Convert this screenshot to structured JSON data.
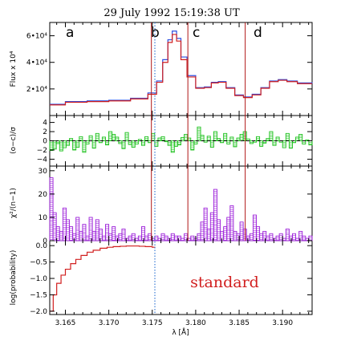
{
  "title": "29 July 1992      15:19:38 UT",
  "xlabel": "λ [Å]",
  "x_ticks": [
    "3.165",
    "3.170",
    "3.175",
    "3.180",
    "3.185",
    "3.190"
  ],
  "region_letters": [
    "a",
    "b",
    "c",
    "d"
  ],
  "annotation": "standard",
  "colors": {
    "observed": "#2c4de0",
    "model": "#d11f1f",
    "residual": "#19c019",
    "chi": "#9c1fd9",
    "probability": "#d11f1f",
    "boundary": "#b01616",
    "dotted": "#3a7bd5",
    "annotation": "#d11f1f"
  },
  "chart_data": [
    {
      "type": "line",
      "panel": "flux",
      "ylabel": "Flux x 10⁴",
      "y_ticks": [
        "2•10⁴",
        "4•10⁴",
        "6•10⁴"
      ],
      "x": [
        3.1632,
        3.165,
        3.1675,
        3.17,
        3.1725,
        3.1745,
        3.1755,
        3.1762,
        3.1768,
        3.1773,
        3.1778,
        3.1783,
        3.179,
        3.18,
        3.181,
        3.1818,
        3.1826,
        3.1835,
        3.1845,
        3.1855,
        3.1865,
        3.1875,
        3.1885,
        3.1895,
        3.1905,
        3.1917,
        3.1934
      ],
      "series": [
        {
          "values": [
            0.85,
            1.05,
            1.1,
            1.15,
            1.3,
            1.7,
            2.6,
            4.2,
            5.7,
            6.35,
            5.8,
            4.4,
            3.0,
            2.1,
            2.15,
            2.5,
            2.55,
            2.1,
            1.55,
            1.4,
            1.6,
            2.1,
            2.6,
            2.7,
            2.6,
            2.45,
            2.5
          ]
        },
        {
          "values": [
            0.8,
            1.0,
            1.05,
            1.1,
            1.25,
            1.6,
            2.5,
            4.0,
            5.5,
            6.1,
            5.6,
            4.2,
            2.9,
            2.05,
            2.1,
            2.45,
            2.5,
            2.05,
            1.5,
            1.35,
            1.55,
            2.05,
            2.55,
            2.65,
            2.55,
            2.4,
            2.4
          ]
        }
      ],
      "ylim": [
        0,
        7
      ],
      "xlim": [
        3.1632,
        3.1934
      ]
    },
    {
      "type": "bar",
      "panel": "residual",
      "ylabel": "(o−c)/σ",
      "y_ticks": [
        "−4",
        "−2",
        "0",
        "2",
        "4"
      ],
      "ylim": [
        -5.5,
        5.5
      ],
      "reference_line": 0,
      "values": [
        -2.1,
        -1.8,
        -0.6,
        -2.2,
        -1.5,
        -1.0,
        0.5,
        -2.0,
        -1.4,
        0.9,
        -2.5,
        -0.7,
        1.1,
        -1.6,
        1.6,
        -0.4,
        0.8,
        -0.9,
        2.0,
        1.4,
        0.8,
        -0.6,
        -1.7,
        1.8,
        -0.8,
        -1.4,
        -0.7,
        0.3,
        -1.0,
        0.9,
        -0.4,
        1.6,
        -1.2,
        0.6,
        0.9,
        -0.2,
        -1.0,
        -2.5,
        -1.2,
        -0.9,
        0.7,
        1.4,
        0.6,
        -2.0,
        -0.7,
        3.0,
        1.2,
        -0.3,
        1.0,
        -1.4,
        2.0,
        0.5,
        -0.4,
        1.6,
        -0.7,
        0.8,
        -1.3,
        0.6,
        1.4,
        2.0,
        0.4,
        -0.6,
        -0.3,
        0.9,
        -1.2,
        -0.5,
        0.5,
        2.0,
        -1.0,
        0.8,
        -0.3,
        -1.5,
        1.6,
        -1.6,
        -0.4,
        0.8,
        1.4,
        -0.7,
        0.2,
        -0.9
      ]
    },
    {
      "type": "bar",
      "panel": "chi",
      "ylabel": "χ²/(n−1)",
      "y_ticks": [
        "0",
        "10",
        "20",
        "30"
      ],
      "ylim": [
        0,
        32
      ],
      "values": [
        27,
        12,
        6,
        4,
        14,
        9,
        6,
        3,
        10,
        4,
        7,
        2,
        10,
        4,
        9,
        5,
        2,
        7,
        3,
        6,
        2,
        3,
        5,
        1,
        2,
        3,
        1,
        2,
        6,
        2,
        3,
        1,
        2,
        1,
        3,
        2,
        1,
        3,
        2,
        2,
        1,
        3,
        1,
        2,
        1,
        3,
        8,
        14,
        5,
        12,
        22,
        9,
        4,
        6,
        10,
        15,
        4,
        3,
        8,
        5,
        2,
        3,
        11,
        6,
        3,
        4,
        2,
        3,
        1,
        2,
        3,
        1,
        5,
        2,
        3,
        1,
        4,
        2,
        1,
        2
      ]
    },
    {
      "type": "line",
      "panel": "probability",
      "ylabel": "log(probability)",
      "y_ticks": [
        "−2.0",
        "−1.5",
        "−1.0",
        "−0.5",
        "0.0"
      ],
      "ylim": [
        -2.1,
        0.15
      ],
      "x": [
        3.1632,
        3.1636,
        3.164,
        3.1645,
        3.165,
        3.1656,
        3.1662,
        3.1668,
        3.1675,
        3.1682,
        3.169,
        3.1698,
        3.1705,
        3.1713,
        3.172,
        3.1728,
        3.1735,
        3.1742,
        3.175,
        3.1753
      ],
      "values": [
        -2.0,
        -1.5,
        -1.15,
        -0.9,
        -0.72,
        -0.55,
        -0.42,
        -0.3,
        -0.2,
        -0.14,
        -0.08,
        -0.05,
        -0.03,
        -0.02,
        -0.01,
        -0.01,
        -0.02,
        -0.03,
        -0.05,
        -0.06
      ]
    }
  ],
  "boundaries": [
    3.1749,
    3.1791,
    3.1857
  ],
  "dotted_marker": 3.1753
}
